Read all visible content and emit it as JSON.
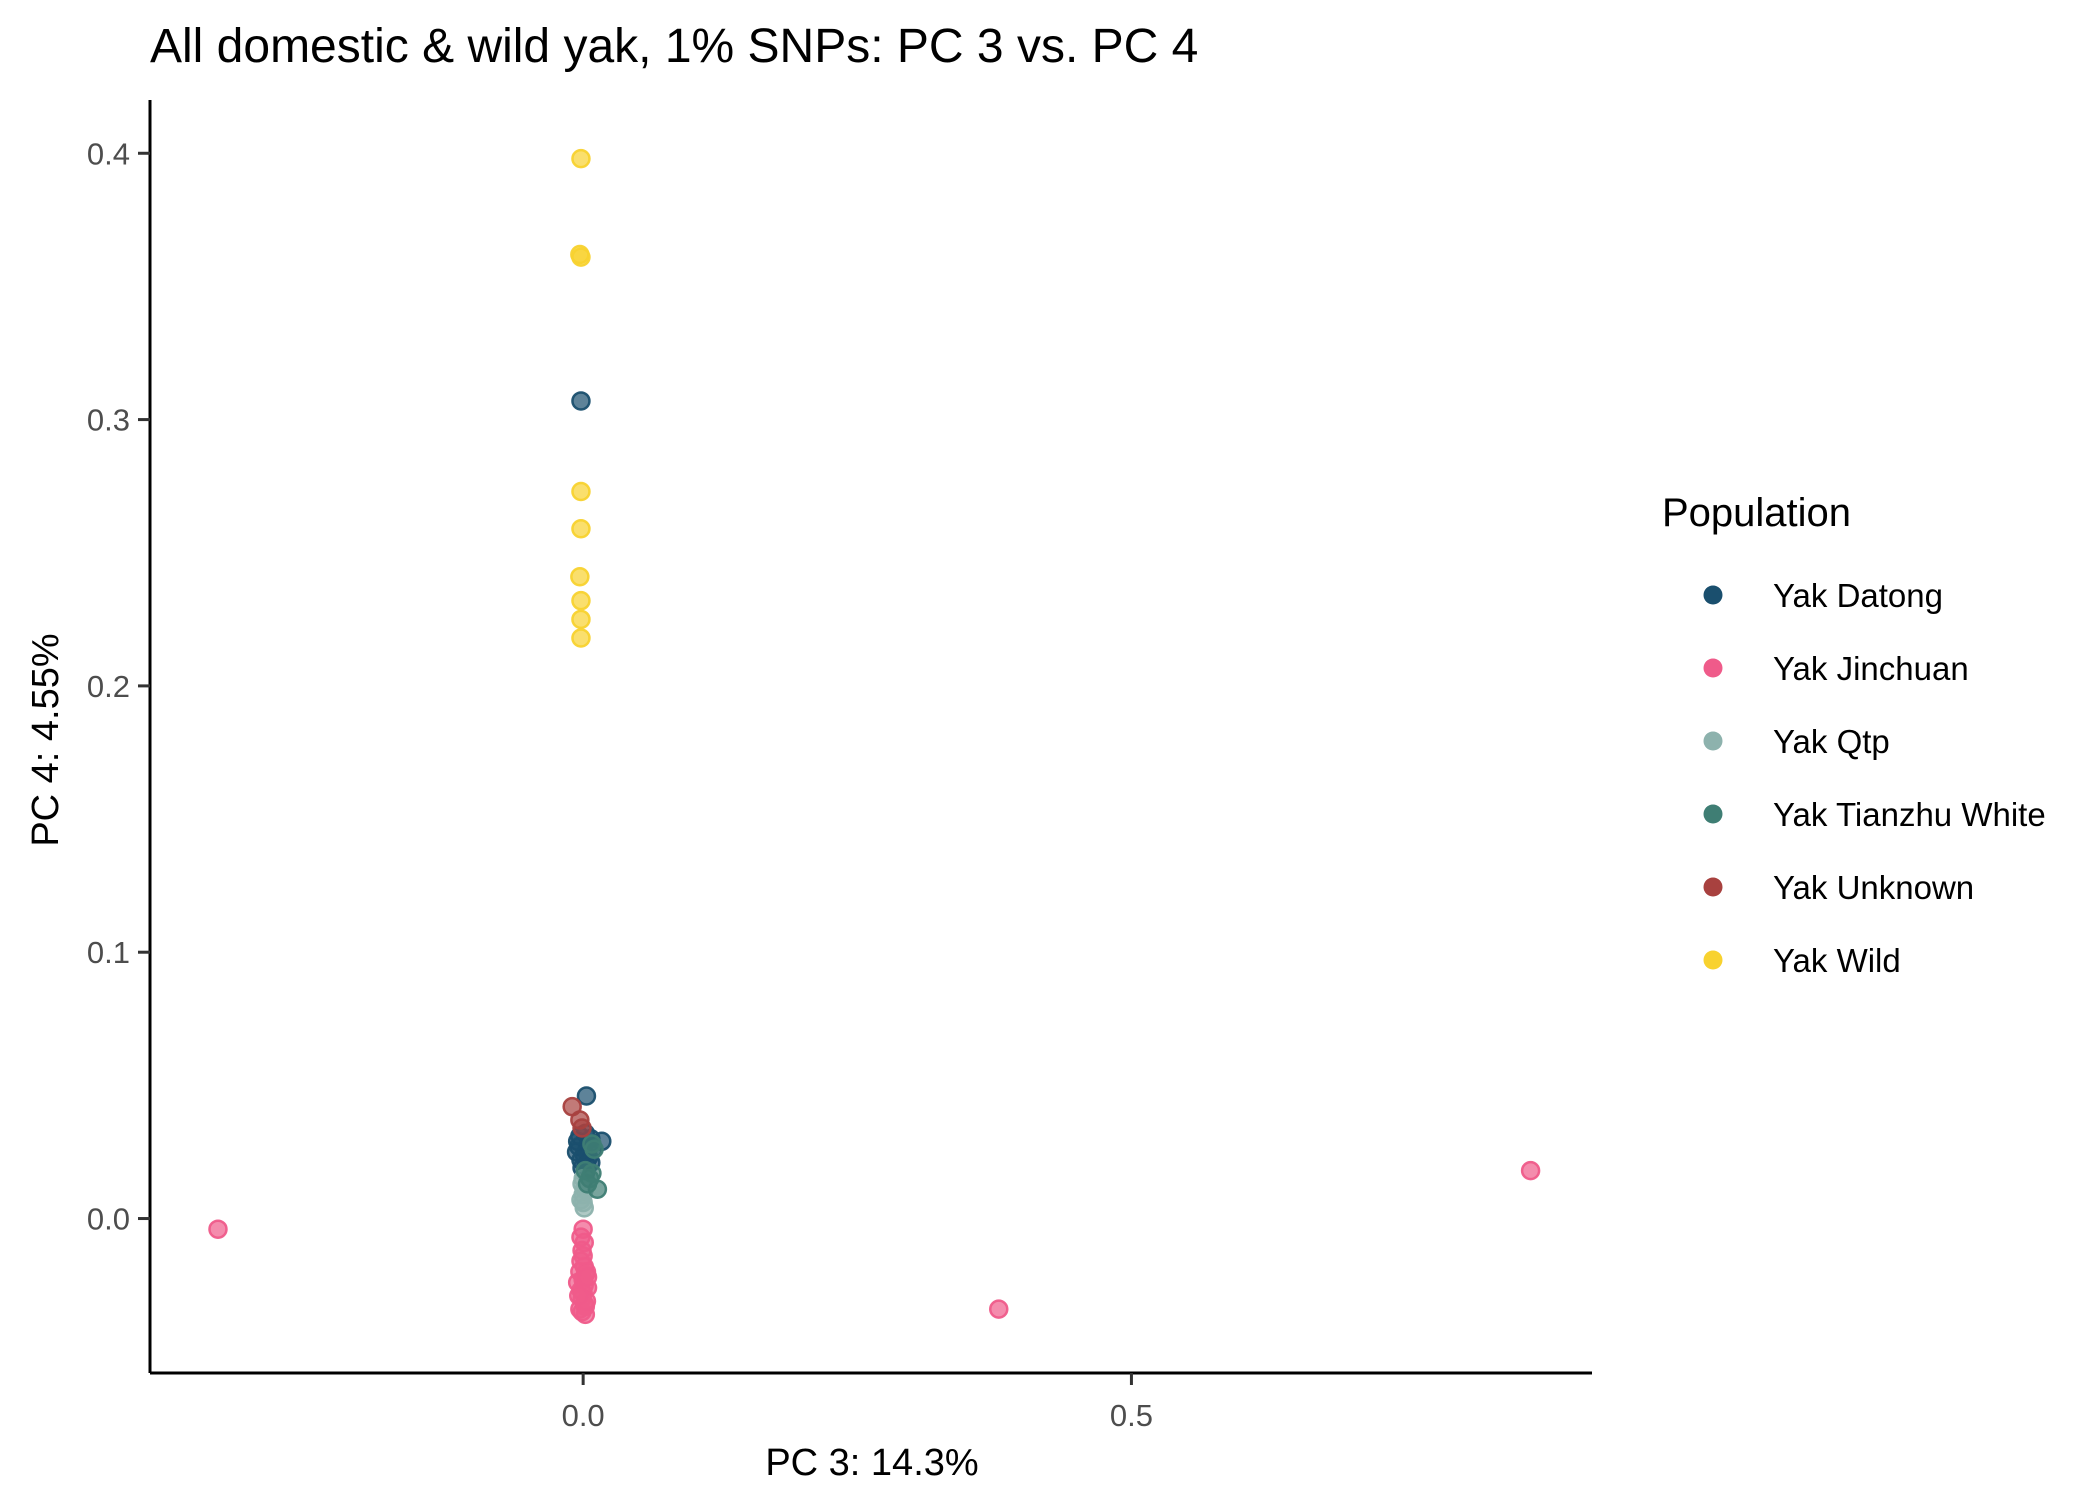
{
  "chart_data": {
    "type": "scatter",
    "title": "All domestic & wild yak, 1% SNPs: PC 3 vs. PC 4",
    "xlabel": "PC 3: 14.3%",
    "ylabel": "PC 4: 4.55%",
    "xlim": [
      -0.395,
      0.92
    ],
    "ylim": [
      -0.058,
      0.42
    ],
    "x_ticks": [
      0.0,
      0.5
    ],
    "x_tick_labels": [
      "0.0",
      "0.5"
    ],
    "y_ticks": [
      0.0,
      0.1,
      0.2,
      0.3,
      0.4
    ],
    "y_tick_labels": [
      "0.0",
      "0.1",
      "0.2",
      "0.3",
      "0.4"
    ],
    "grid": false,
    "legend": {
      "title": "Population",
      "position": "right"
    },
    "series": [
      {
        "name": "Yak Datong",
        "color": "#1a4f6e",
        "points": [
          [
            -0.002,
            0.307
          ],
          [
            0.003,
            0.046
          ],
          [
            -0.003,
            0.031
          ],
          [
            0.002,
            0.032
          ],
          [
            -0.005,
            0.029
          ],
          [
            0.007,
            0.03
          ],
          [
            0.017,
            0.029
          ],
          [
            -0.004,
            0.027
          ],
          [
            0.004,
            0.027
          ],
          [
            0.009,
            0.026
          ],
          [
            -0.006,
            0.025
          ],
          [
            0.001,
            0.024
          ],
          [
            -0.002,
            0.022
          ],
          [
            0.005,
            0.023
          ],
          [
            0.003,
            0.02
          ],
          [
            0.007,
            0.021
          ],
          [
            -0.001,
            0.019
          ],
          [
            0.002,
            0.017
          ]
        ]
      },
      {
        "name": "Yak Jinchuan",
        "color": "#ef5b8a",
        "points": [
          [
            -0.333,
            -0.004
          ],
          [
            0.379,
            -0.034
          ],
          [
            0.864,
            0.018
          ],
          [
            0.0,
            -0.004
          ],
          [
            -0.002,
            -0.007
          ],
          [
            0.001,
            -0.009
          ],
          [
            -0.001,
            -0.012
          ],
          [
            0.0,
            -0.014
          ],
          [
            -0.002,
            -0.016
          ],
          [
            0.001,
            -0.018
          ],
          [
            -0.003,
            -0.02
          ],
          [
            0.002,
            -0.021
          ],
          [
            0.0,
            -0.023
          ],
          [
            0.003,
            -0.02
          ],
          [
            -0.005,
            -0.024
          ],
          [
            0.001,
            -0.025
          ],
          [
            0.004,
            -0.026
          ],
          [
            -0.002,
            -0.027
          ],
          [
            0.0,
            -0.028
          ],
          [
            -0.001,
            -0.03
          ],
          [
            0.001,
            -0.032
          ],
          [
            0.002,
            -0.033
          ],
          [
            -0.003,
            -0.034
          ],
          [
            -0.001,
            -0.035
          ],
          [
            0.002,
            -0.036
          ],
          [
            0.003,
            -0.031
          ],
          [
            -0.004,
            -0.029
          ],
          [
            0.004,
            -0.022
          ]
        ]
      },
      {
        "name": "Yak Qtp",
        "color": "#8db2ad",
        "points": [
          [
            0.0,
            0.015
          ],
          [
            -0.001,
            0.013
          ],
          [
            0.001,
            0.011
          ],
          [
            0.0,
            0.009
          ],
          [
            -0.002,
            0.007
          ],
          [
            0.0,
            0.006
          ],
          [
            0.001,
            0.004
          ]
        ]
      },
      {
        "name": "Yak Tianzhu White",
        "color": "#3f7e74",
        "points": [
          [
            0.008,
            0.028
          ],
          [
            0.01,
            0.026
          ],
          [
            0.013,
            0.011
          ],
          [
            0.006,
            0.015
          ],
          [
            0.004,
            0.013
          ],
          [
            0.002,
            0.018
          ],
          [
            0.008,
            0.017
          ]
        ]
      },
      {
        "name": "Yak Unknown",
        "color": "#a8413f",
        "points": [
          [
            -0.01,
            0.042
          ],
          [
            -0.003,
            0.037
          ],
          [
            -0.001,
            0.034
          ]
        ]
      },
      {
        "name": "Yak Wild",
        "color": "#f8d22f",
        "points": [
          [
            -0.002,
            0.398
          ],
          [
            -0.003,
            0.362
          ],
          [
            -0.002,
            0.361
          ],
          [
            -0.002,
            0.273
          ],
          [
            -0.002,
            0.259
          ],
          [
            -0.003,
            0.241
          ],
          [
            -0.002,
            0.232
          ],
          [
            -0.002,
            0.225
          ],
          [
            -0.002,
            0.218
          ]
        ]
      }
    ]
  }
}
